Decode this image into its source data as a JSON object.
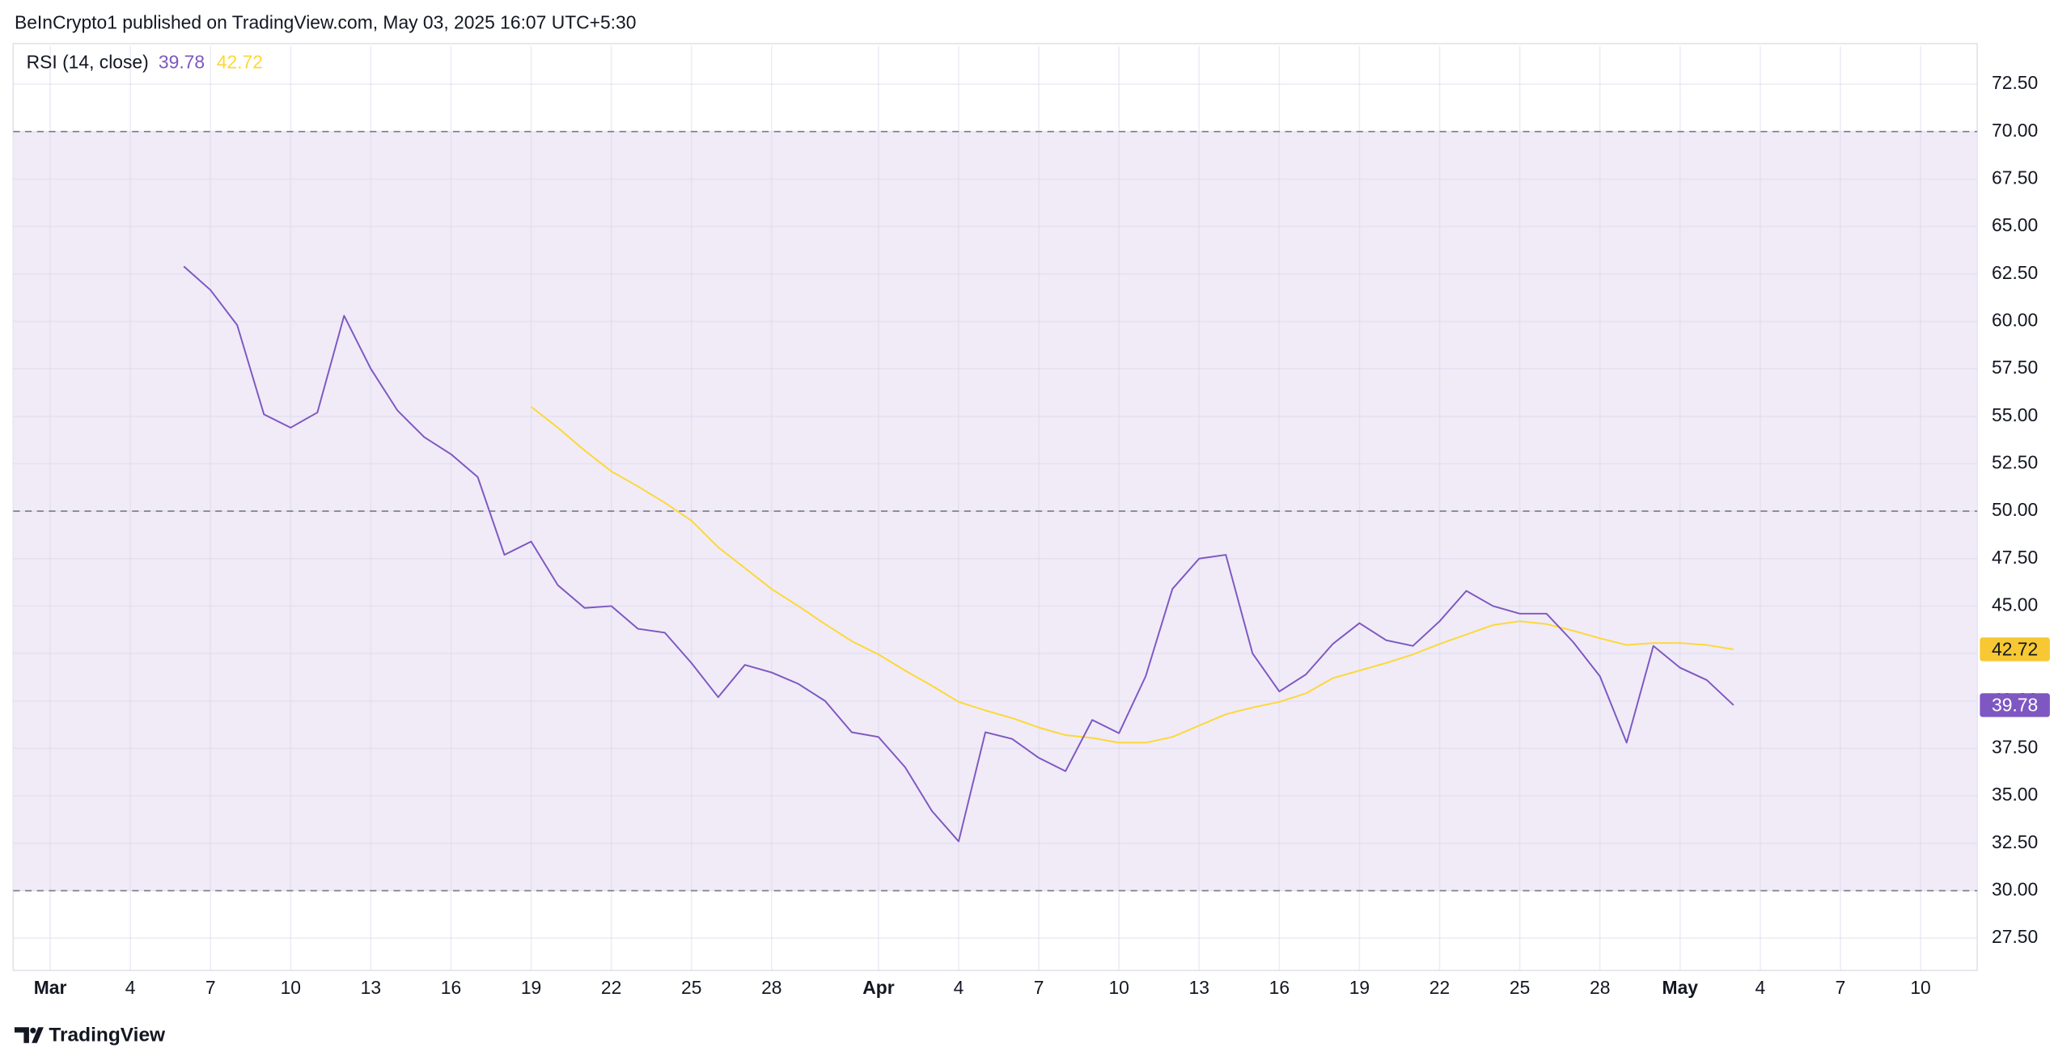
{
  "header": {
    "text": "BeInCrypto1 published on TradingView.com, May 03, 2025 16:07 UTC+5:30"
  },
  "footer": {
    "brand": "TradingView"
  },
  "chart_data": {
    "type": "line",
    "title": "RSI (14, close)",
    "categories": [
      "Mar",
      null,
      null,
      "4",
      null,
      null,
      "7",
      null,
      null,
      "10",
      null,
      null,
      "13",
      null,
      null,
      "16",
      null,
      null,
      "19",
      null,
      null,
      "22",
      null,
      null,
      "25",
      null,
      null,
      "28",
      null,
      null,
      null,
      "Apr",
      null,
      null,
      "4",
      null,
      null,
      "7",
      null,
      null,
      "10",
      null,
      null,
      "13",
      null,
      null,
      "16",
      null,
      null,
      "19",
      null,
      null,
      "22",
      null,
      null,
      "25",
      null,
      null,
      "28",
      null,
      null,
      "May",
      null,
      null,
      "4",
      null,
      null,
      "7",
      null,
      null,
      "10",
      null,
      null
    ],
    "series": [
      {
        "color": "#7e57c2",
        "values": [
          null,
          null,
          null,
          null,
          null,
          62.9,
          61.65,
          59.8,
          55.1,
          54.4,
          55.2,
          60.3,
          57.5,
          55.3,
          53.9,
          53.0,
          51.8,
          47.7,
          48.4,
          46.1,
          44.9,
          45.0,
          43.8,
          43.6,
          42.0,
          40.2,
          41.9,
          41.5,
          40.9,
          40.0,
          38.35,
          38.1,
          36.5,
          34.2,
          32.6,
          38.35,
          38.0,
          37.0,
          36.3,
          39.0,
          38.3,
          41.3,
          45.9,
          47.5,
          47.7,
          42.5,
          40.5,
          41.4,
          43.0,
          44.1,
          43.2,
          42.9,
          44.2,
          45.8,
          45.0,
          44.6,
          44.6,
          43.1,
          41.3,
          37.8,
          42.9,
          41.75,
          41.1,
          39.78,
          null,
          null,
          null,
          null,
          null,
          null,
          null,
          null,
          null
        ]
      },
      {
        "color": "#fdd835",
        "values": [
          null,
          null,
          null,
          null,
          null,
          null,
          null,
          null,
          null,
          null,
          null,
          null,
          null,
          null,
          null,
          null,
          null,
          null,
          55.5,
          54.4,
          53.2,
          52.1,
          51.3,
          50.45,
          49.5,
          48.1,
          47.0,
          45.9,
          45.0,
          44.05,
          43.15,
          42.45,
          41.6,
          40.8,
          39.95,
          39.5,
          39.1,
          38.6,
          38.2,
          38.05,
          37.8,
          37.8,
          38.1,
          38.7,
          39.3,
          39.65,
          39.95,
          40.4,
          41.2,
          41.6,
          42.0,
          42.45,
          43.0,
          43.5,
          44.0,
          44.2,
          44.05,
          43.7,
          43.3,
          42.95,
          43.05,
          43.05,
          42.95,
          42.72,
          null,
          null,
          null,
          null,
          null,
          null,
          null,
          null,
          null
        ]
      }
    ],
    "ylim": [
      25.8,
      74.5
    ],
    "yticks": [
      {
        "value": 27.5,
        "label": "27.50"
      },
      {
        "value": 30,
        "label": "30.00"
      },
      {
        "value": 32.5,
        "label": "32.50"
      },
      {
        "value": 35,
        "label": "35.00"
      },
      {
        "value": 37.5,
        "label": "37.50"
      },
      {
        "value": 40,
        "label": "40.00"
      },
      {
        "value": 42.5,
        "label": "42.50"
      },
      {
        "value": 45,
        "label": "45.00"
      },
      {
        "value": 47.5,
        "label": "47.50"
      },
      {
        "value": 50,
        "label": "50.00"
      },
      {
        "value": 52.5,
        "label": "52.50"
      },
      {
        "value": 55,
        "label": "55.00"
      },
      {
        "value": 57.5,
        "label": "57.50"
      },
      {
        "value": 60,
        "label": "60.00"
      },
      {
        "value": 62.5,
        "label": "62.50"
      },
      {
        "value": 65,
        "label": "65.00"
      },
      {
        "value": 67.5,
        "label": "67.50"
      },
      {
        "value": 70,
        "label": "70.00"
      },
      {
        "value": 72.5,
        "label": "72.50"
      }
    ],
    "levels": [
      30,
      50,
      70
    ],
    "band_color": "#ede7f6",
    "grid": true
  }
}
